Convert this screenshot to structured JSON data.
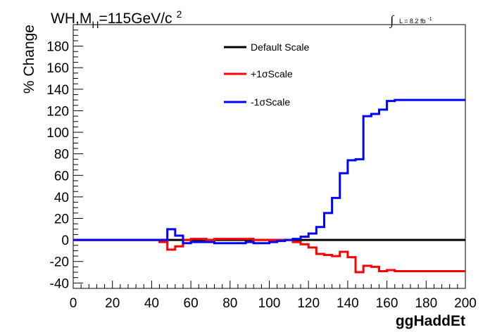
{
  "chart_data": {
    "type": "line",
    "title": {
      "main": "WH,M",
      "sub": "H",
      "rest": "=115GeV/c",
      "sup": "2"
    },
    "lumi": {
      "integral": "∫",
      "text": "L = 8.2 fb",
      "sup": "-1"
    },
    "xlabel": "ggHaddEt",
    "ylabel": "% Change",
    "xlim": [
      0,
      200
    ],
    "ylim": [
      -45,
      200
    ],
    "x_ticks": [
      0,
      20,
      40,
      60,
      80,
      100,
      120,
      140,
      160,
      180,
      200
    ],
    "y_ticks": [
      -40,
      -20,
      0,
      20,
      40,
      60,
      80,
      100,
      120,
      140,
      160,
      180
    ],
    "grid": false,
    "legend_position": "top-center",
    "step_width": 4,
    "series": [
      {
        "name": "Default Scale",
        "color": "#000000",
        "x": [
          0,
          4,
          8,
          12,
          16,
          20,
          24,
          28,
          32,
          36,
          40,
          44,
          48,
          52,
          56,
          60,
          64,
          68,
          72,
          76,
          80,
          84,
          88,
          92,
          96,
          100,
          104,
          108,
          112,
          116,
          120,
          124,
          128,
          132,
          136,
          140,
          144,
          148,
          152,
          156,
          160,
          164,
          168,
          172,
          176,
          180,
          184,
          188,
          192,
          196
        ],
        "values": [
          0,
          0,
          0,
          0,
          0,
          0,
          0,
          0,
          0,
          0,
          0,
          0,
          0,
          0,
          0,
          0,
          0,
          0,
          0,
          0,
          0,
          0,
          0,
          0,
          0,
          0,
          0,
          0,
          0,
          0,
          0,
          0,
          0,
          0,
          0,
          0,
          0,
          0,
          0,
          0,
          0,
          0,
          0,
          0,
          0,
          0,
          0,
          0,
          0,
          0
        ]
      },
      {
        "name": "+1σScale",
        "color": "#ff0000",
        "x": [
          0,
          4,
          8,
          12,
          16,
          20,
          24,
          28,
          32,
          36,
          40,
          44,
          48,
          52,
          56,
          60,
          64,
          68,
          72,
          76,
          80,
          84,
          88,
          92,
          96,
          100,
          104,
          108,
          112,
          116,
          120,
          124,
          128,
          132,
          136,
          140,
          144,
          148,
          152,
          156,
          160,
          164,
          168,
          172,
          176,
          180,
          184,
          188,
          192,
          196
        ],
        "values": [
          0,
          0,
          0,
          0,
          0,
          0,
          0,
          0,
          0,
          0,
          0,
          -2,
          -9,
          -6,
          0,
          1,
          1,
          0,
          1,
          1,
          1,
          1,
          1,
          0,
          0,
          0,
          0,
          0,
          -2,
          -4,
          -7,
          -13,
          -14,
          -15,
          -11,
          -16,
          -30,
          -24,
          -25,
          -29,
          -28,
          -29,
          -29,
          -29,
          -29,
          -29,
          -29,
          -29,
          -29,
          -29
        ]
      },
      {
        "name": "-1σScale",
        "color": "#0000ff",
        "x": [
          0,
          4,
          8,
          12,
          16,
          20,
          24,
          28,
          32,
          36,
          40,
          44,
          48,
          52,
          56,
          60,
          64,
          68,
          72,
          76,
          80,
          84,
          88,
          92,
          96,
          100,
          104,
          108,
          112,
          116,
          120,
          124,
          128,
          132,
          136,
          140,
          144,
          148,
          152,
          156,
          160,
          164,
          168,
          172,
          176,
          180,
          184,
          188,
          192,
          196
        ],
        "values": [
          0,
          0,
          0,
          0,
          0,
          0,
          0,
          0,
          0,
          0,
          0,
          0,
          10,
          4,
          -3,
          -2,
          -2,
          -2,
          -3,
          -3,
          -3,
          -3,
          -2,
          -3,
          -3,
          -2,
          -1,
          0,
          1,
          3,
          6,
          12,
          25,
          39,
          62,
          74,
          75,
          115,
          117,
          121,
          129,
          130,
          130,
          130,
          130,
          130,
          130,
          130,
          130,
          130
        ]
      }
    ]
  }
}
